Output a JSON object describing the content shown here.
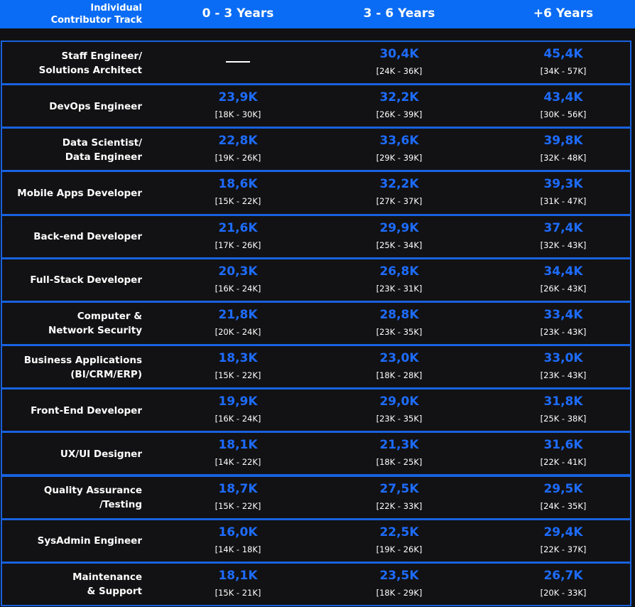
{
  "header": {
    "title": [
      "Individual",
      "Contributor Track"
    ],
    "columns": [
      "0 - 3 Years",
      "3 - 6 Years",
      "+6 Years"
    ]
  },
  "table": {
    "rows": [
      {
        "role": [
          "Staff Engineer/",
          "Solutions Architect"
        ],
        "cells": [
          null,
          {
            "value": "30,4K",
            "range": "[24K - 36K]"
          },
          {
            "value": "45,4K",
            "range": "[34K - 57K]"
          }
        ]
      },
      {
        "role": [
          "DevOps Engineer"
        ],
        "cells": [
          {
            "value": "23,9K",
            "range": "[18K - 30K]"
          },
          {
            "value": "32,2K",
            "range": "[26K - 39K]"
          },
          {
            "value": "43,4K",
            "range": "[30K - 56K]"
          }
        ]
      },
      {
        "role": [
          "Data Scientist/",
          "Data Engineer"
        ],
        "cells": [
          {
            "value": "22,8K",
            "range": "[19K - 26K]"
          },
          {
            "value": "33,6K",
            "range": "[29K - 39K]"
          },
          {
            "value": "39,8K",
            "range": "[32K - 48K]"
          }
        ]
      },
      {
        "role": [
          "Mobile Apps Developer"
        ],
        "cells": [
          {
            "value": "18,6K",
            "range": "[15K - 22K]"
          },
          {
            "value": "32,2K",
            "range": "[27K - 37K]"
          },
          {
            "value": "39,3K",
            "range": "[31K - 47K]"
          }
        ]
      },
      {
        "role": [
          "Back-end Developer"
        ],
        "cells": [
          {
            "value": "21,6K",
            "range": "[17K - 26K]"
          },
          {
            "value": "29,9K",
            "range": "[25K - 34K]"
          },
          {
            "value": "37,4K",
            "range": "[32K - 43K]"
          }
        ]
      },
      {
        "role": [
          "Full-Stack Developer"
        ],
        "cells": [
          {
            "value": "20,3K",
            "range": "[16K - 24K]"
          },
          {
            "value": "26,8K",
            "range": "[23K - 31K]"
          },
          {
            "value": "34,4K",
            "range": "[26K - 43K]"
          }
        ]
      },
      {
        "role": [
          "Computer &",
          "Network Security"
        ],
        "cells": [
          {
            "value": "21,8K",
            "range": "[20K - 24K]"
          },
          {
            "value": "28,8K",
            "range": "[23K - 35K]"
          },
          {
            "value": "33,4K",
            "range": "[23K - 43K]"
          }
        ]
      },
      {
        "role": [
          "Business Applications",
          "(BI/CRM/ERP)"
        ],
        "cells": [
          {
            "value": "18,3K",
            "range": "[15K - 22K]"
          },
          {
            "value": "23,0K",
            "range": "[18K - 28K]"
          },
          {
            "value": "33,0K",
            "range": "[23K - 43K]"
          }
        ]
      },
      {
        "role": [
          "Front-End Developer"
        ],
        "cells": [
          {
            "value": "19,9K",
            "range": "[16K - 24K]"
          },
          {
            "value": "29,0K",
            "range": "[23K - 35K]"
          },
          {
            "value": "31,8K",
            "range": "[25K - 38K]"
          }
        ]
      },
      {
        "role": [
          "UX/UI Designer"
        ],
        "cells": [
          {
            "value": "18,1K",
            "range": "[14K - 22K]"
          },
          {
            "value": "21,3K",
            "range": "[18K - 25K]"
          },
          {
            "value": "31,6K",
            "range": "[22K - 41K]"
          }
        ]
      },
      {
        "role": [
          "Quality Assurance",
          "/Testing"
        ],
        "cells": [
          {
            "value": "18,7K",
            "range": "[15K - 22K]"
          },
          {
            "value": "27,5K",
            "range": "[22K - 33K]"
          },
          {
            "value": "29,5K",
            "range": "[24K - 35K]"
          }
        ]
      },
      {
        "role": [
          "SysAdmin Engineer"
        ],
        "cells": [
          {
            "value": "16,0K",
            "range": "[14K - 18K]"
          },
          {
            "value": "22,5K",
            "range": "[19K - 26K]"
          },
          {
            "value": "29,4K",
            "range": "[22K - 37K]"
          }
        ]
      },
      {
        "role": [
          "Maintenance",
          "& Support"
        ],
        "cells": [
          {
            "value": "18,1K",
            "range": "[15K - 21K]"
          },
          {
            "value": "23,5K",
            "range": "[18K - 29K]"
          },
          {
            "value": "26,7K",
            "range": "[20K - 33K]"
          }
        ]
      }
    ]
  }
}
